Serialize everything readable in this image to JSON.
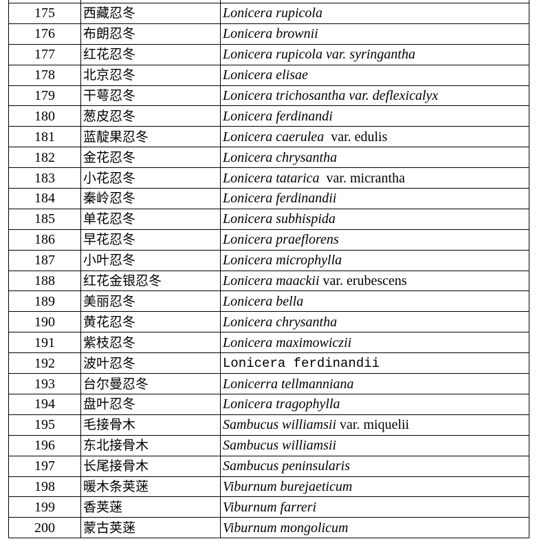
{
  "rows": [
    {
      "no": "175",
      "cn": "西藏忍冬",
      "sci": "Lonicera rupicola",
      "suffix": ""
    },
    {
      "no": "176",
      "cn": "布朗忍冬",
      "sci": "Lonicera brownii",
      "suffix": ""
    },
    {
      "no": "177",
      "cn": "红花忍冬",
      "sci": "Lonicera rupicola var. syringantha",
      "suffix": ""
    },
    {
      "no": "178",
      "cn": "北京忍冬",
      "sci": "Lonicera elisae",
      "suffix": ""
    },
    {
      "no": "179",
      "cn": "干萼忍冬",
      "sci": "Lonicera trichosantha var. deflexicalyx",
      "suffix": ""
    },
    {
      "no": "180",
      "cn": "葱皮忍冬",
      "sci": "Lonicera ferdinandi",
      "suffix": ""
    },
    {
      "no": "181",
      "cn": "蓝靛果忍冬",
      "sci": "Lonicera caerulea ",
      "suffix": " var. edulis"
    },
    {
      "no": "182",
      "cn": "金花忍冬",
      "sci": "Lonicera chrysantha",
      "suffix": ""
    },
    {
      "no": "183",
      "cn": "小花忍冬",
      "sci": "Lonicera tatarica ",
      "suffix": " var. micrantha"
    },
    {
      "no": "184",
      "cn": "秦岭忍冬",
      "sci": "Lonicera ferdinandii",
      "suffix": ""
    },
    {
      "no": "185",
      "cn": "单花忍冬",
      "sci": "Lonicera subhispida",
      "suffix": ""
    },
    {
      "no": "186",
      "cn": "早花忍冬",
      "sci": "Lonicera praeflorens",
      "suffix": ""
    },
    {
      "no": "187",
      "cn": "小叶忍冬",
      "sci": "Lonicera microphylla",
      "suffix": ""
    },
    {
      "no": "188",
      "cn": "红花金银忍冬",
      "sci": "Lonicera maackii",
      "suffix": " var. erubescens"
    },
    {
      "no": "189",
      "cn": "美丽忍冬",
      "sci": "Lonicera bella",
      "suffix": ""
    },
    {
      "no": "190",
      "cn": "黄花忍冬",
      "sci": "Lonicera chrysantha",
      "suffix": ""
    },
    {
      "no": "191",
      "cn": "紫枝忍冬",
      "sci": "Lonicera maximowiczii",
      "suffix": ""
    },
    {
      "no": "192",
      "cn": "波叶忍冬",
      "sci": "",
      "suffix": "",
      "mono": "Lonicera ferdinandii"
    },
    {
      "no": "193",
      "cn": "台尔曼忍冬",
      "sci": "Lonicerra tellmanniana",
      "suffix": ""
    },
    {
      "no": "194",
      "cn": "盘叶忍冬",
      "sci": "Lonicera tragophylla",
      "suffix": ""
    },
    {
      "no": "195",
      "cn": "毛接骨木",
      "sci": "Sambucus williamsii",
      "suffix": " var. miquelii"
    },
    {
      "no": "196",
      "cn": "东北接骨木",
      "sci": "Sambucus williamsii",
      "suffix": ""
    },
    {
      "no": "197",
      "cn": "长尾接骨木",
      "sci": "Sambucus peninsularis",
      "suffix": ""
    },
    {
      "no": "198",
      "cn": "暖木条荚蒾",
      "sci": "Viburnum burejaeticum",
      "suffix": ""
    },
    {
      "no": "199",
      "cn": "香荚蒾",
      "sci": "Viburnum farreri",
      "suffix": ""
    },
    {
      "no": "200",
      "cn": "蒙古荚蒾",
      "sci": "Viburnum mongolicum",
      "suffix": ""
    }
  ]
}
